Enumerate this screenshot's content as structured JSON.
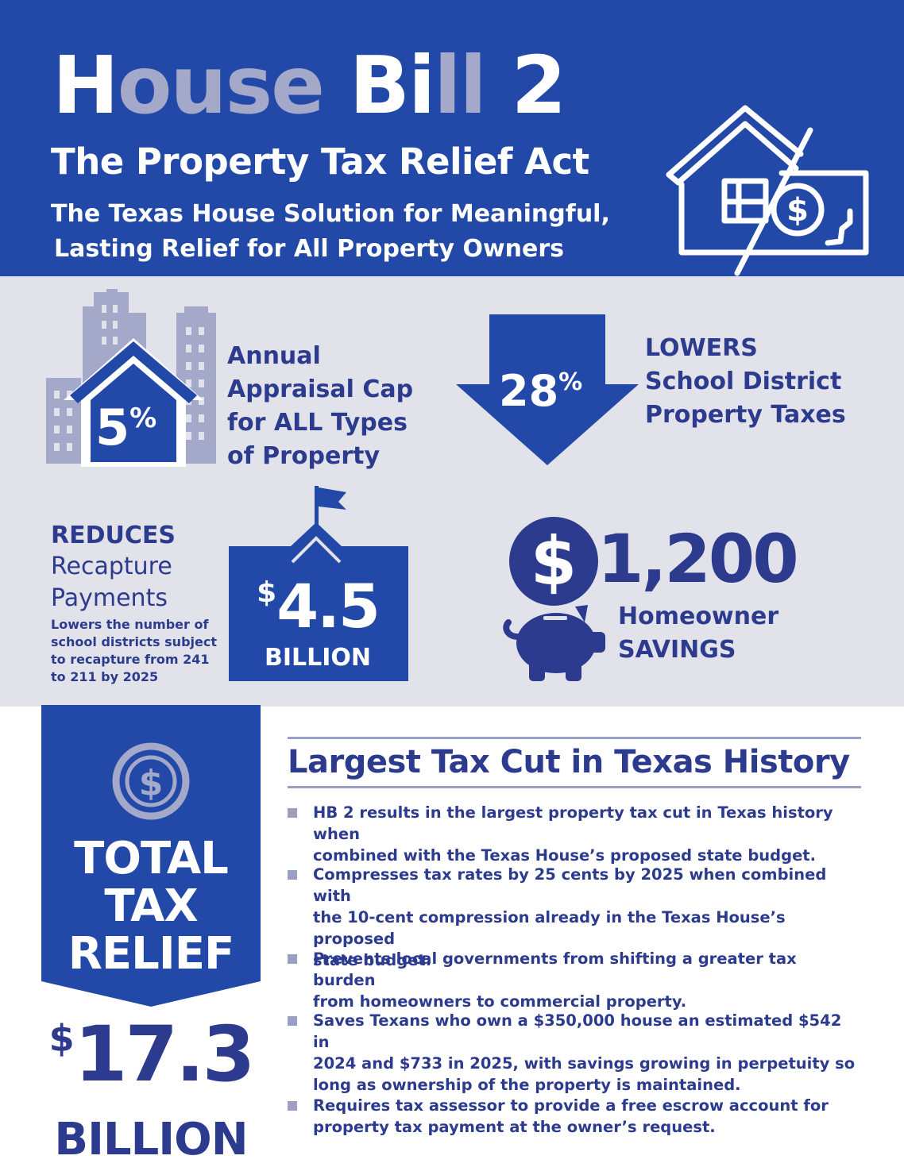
{
  "header": {
    "title_part1": "H",
    "title_part2": "ouse",
    "title_part3": " Bi",
    "title_part4": "ll",
    "title_part5": " 2",
    "subtitle": "The Property Tax Relief Act",
    "tagline_line1": "The Texas House Solution for Meaningful,",
    "tagline_line2": "Lasting Relief for All Property Owners"
  },
  "stats": {
    "appraisal": {
      "percent": "5",
      "percent_sign": "%",
      "line1": "Annual",
      "line2": "Appraisal Cap",
      "line3_pre": "for ",
      "line3_em": "ALL",
      "line3_post": " Types",
      "line4": "of Property"
    },
    "school_tax": {
      "percent": "28",
      "percent_sign": "%",
      "heading": "LOWERS",
      "line1": "School District",
      "line2": "Property Taxes"
    },
    "recapture": {
      "heading": "REDUCES",
      "line1": "Recapture",
      "line2": "Payments",
      "note_line1": "Lowers the number of",
      "note_line2": "school districts subject",
      "note_line3": "to recapture from 241",
      "note_line4": "to 211 by 2025",
      "amount_sign": "$",
      "amount": "4.5",
      "amount_unit": "BILLION"
    },
    "homeowner": {
      "amount": "1,200",
      "line1": "Homeowner",
      "line2": "SAVINGS"
    }
  },
  "total": {
    "line1": "TOTAL",
    "line2": "TAX",
    "line3": "RELIEF",
    "amount_sign": "$",
    "amount": "17.3",
    "amount_unit": "BILLION"
  },
  "history": {
    "title": "Largest Tax Cut in Texas History",
    "bullets": [
      {
        "line1": "HB 2 results in the largest property tax cut in Texas history when",
        "line2": "combined with the Texas House’s proposed state budget."
      },
      {
        "line1": "Compresses tax rates by 25 cents by 2025 when combined with",
        "line2": "the 10-cent compression already in the Texas House’s proposed",
        "line3": "state budget."
      },
      {
        "line1": "Prevents local governments from shifting a greater tax burden",
        "line2": "from homeowners to commercial property."
      },
      {
        "line1": "Saves Texans who own a $350,000 house an estimated $542 in",
        "line2": "2024 and $733 in 2025, with savings growing in perpetuity so",
        "line3": "long as ownership of the property is maintained."
      },
      {
        "line1": "Requires tax assessor to provide a free escrow account for",
        "line2": "property tax payment at the owner’s request."
      }
    ]
  },
  "colors": {
    "primary_blue": "#2349a8",
    "navy_text": "#2c3b8e",
    "lavender": "#a5a9c9",
    "gray_band": "#e1e2ea"
  },
  "icons": [
    "house-money-icon",
    "city-house-icon",
    "down-arrow-icon",
    "school-building-icon",
    "dollar-coin-icon",
    "piggy-bank-icon"
  ]
}
